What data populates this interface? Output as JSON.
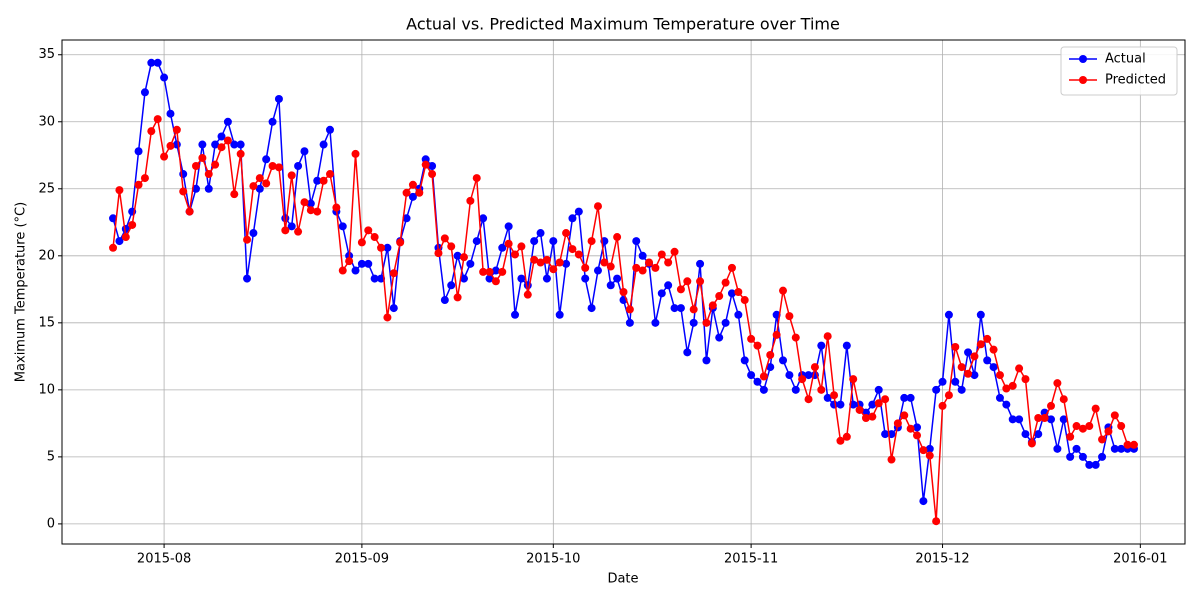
{
  "chart_data": {
    "type": "line",
    "title": "Actual vs. Predicted Maximum Temperature over Time",
    "xlabel": "Date",
    "ylabel": "Maximum Temperature (°C)",
    "x": [
      "2015-07-24",
      "2015-07-25",
      "2015-07-26",
      "2015-07-27",
      "2015-07-28",
      "2015-07-29",
      "2015-07-30",
      "2015-07-31",
      "2015-08-01",
      "2015-08-02",
      "2015-08-03",
      "2015-08-04",
      "2015-08-05",
      "2015-08-06",
      "2015-08-07",
      "2015-08-08",
      "2015-08-09",
      "2015-08-10",
      "2015-08-11",
      "2015-08-12",
      "2015-08-13",
      "2015-08-14",
      "2015-08-15",
      "2015-08-16",
      "2015-08-17",
      "2015-08-18",
      "2015-08-19",
      "2015-08-20",
      "2015-08-21",
      "2015-08-22",
      "2015-08-23",
      "2015-08-24",
      "2015-08-25",
      "2015-08-26",
      "2015-08-27",
      "2015-08-28",
      "2015-08-29",
      "2015-08-30",
      "2015-08-31",
      "2015-09-01",
      "2015-09-02",
      "2015-09-03",
      "2015-09-04",
      "2015-09-05",
      "2015-09-06",
      "2015-09-07",
      "2015-09-08",
      "2015-09-09",
      "2015-09-10",
      "2015-09-11",
      "2015-09-12",
      "2015-09-13",
      "2015-09-14",
      "2015-09-15",
      "2015-09-16",
      "2015-09-17",
      "2015-09-18",
      "2015-09-19",
      "2015-09-20",
      "2015-09-21",
      "2015-09-22",
      "2015-09-23",
      "2015-09-24",
      "2015-09-25",
      "2015-09-26",
      "2015-09-27",
      "2015-09-28",
      "2015-09-29",
      "2015-09-30",
      "2015-10-01",
      "2015-10-02",
      "2015-10-03",
      "2015-10-04",
      "2015-10-05",
      "2015-10-06",
      "2015-10-07",
      "2015-10-08",
      "2015-10-09",
      "2015-10-10",
      "2015-10-11",
      "2015-10-12",
      "2015-10-13",
      "2015-10-14",
      "2015-10-15",
      "2015-10-16",
      "2015-10-17",
      "2015-10-18",
      "2015-10-19",
      "2015-10-20",
      "2015-10-21",
      "2015-10-22",
      "2015-10-23",
      "2015-10-24",
      "2015-10-25",
      "2015-10-26",
      "2015-10-27",
      "2015-10-28",
      "2015-10-29",
      "2015-10-30",
      "2015-10-31",
      "2015-11-01",
      "2015-11-02",
      "2015-11-03",
      "2015-11-04",
      "2015-11-05",
      "2015-11-06",
      "2015-11-07",
      "2015-11-08",
      "2015-11-09",
      "2015-11-10",
      "2015-11-11",
      "2015-11-12",
      "2015-11-13",
      "2015-11-14",
      "2015-11-15",
      "2015-11-16",
      "2015-11-17",
      "2015-11-18",
      "2015-11-19",
      "2015-11-20",
      "2015-11-21",
      "2015-11-22",
      "2015-11-23",
      "2015-11-24",
      "2015-11-25",
      "2015-11-26",
      "2015-11-27",
      "2015-11-28",
      "2015-11-29",
      "2015-11-30",
      "2015-12-01",
      "2015-12-02",
      "2015-12-03",
      "2015-12-04",
      "2015-12-05",
      "2015-12-06",
      "2015-12-07",
      "2015-12-08",
      "2015-12-09",
      "2015-12-10",
      "2015-12-11",
      "2015-12-12",
      "2015-12-13",
      "2015-12-14",
      "2015-12-15",
      "2015-12-16",
      "2015-12-17",
      "2015-12-18",
      "2015-12-19",
      "2015-12-20",
      "2015-12-21",
      "2015-12-22",
      "2015-12-23",
      "2015-12-24",
      "2015-12-25",
      "2015-12-26",
      "2015-12-27",
      "2015-12-28",
      "2015-12-29",
      "2015-12-30",
      "2015-12-31"
    ],
    "series": [
      {
        "name": "Actual",
        "color": "#0000ff",
        "values": [
          22.8,
          21.1,
          22.0,
          23.3,
          27.8,
          32.2,
          34.4,
          34.4,
          33.3,
          30.6,
          28.3,
          26.1,
          23.3,
          25.0,
          28.3,
          25.0,
          28.3,
          28.9,
          30.0,
          28.3,
          28.3,
          18.3,
          21.7,
          25.0,
          27.2,
          30.0,
          31.7,
          22.8,
          22.2,
          26.7,
          27.8,
          23.9,
          25.6,
          28.3,
          29.4,
          23.3,
          22.2,
          20.0,
          18.9,
          19.4,
          19.4,
          18.3,
          18.3,
          20.6,
          16.1,
          21.1,
          22.8,
          24.4,
          25.0,
          27.2,
          26.7,
          20.6,
          16.7,
          17.8,
          20.0,
          18.3,
          19.4,
          21.1,
          22.8,
          18.3,
          18.9,
          20.6,
          22.2,
          15.6,
          18.3,
          17.8,
          21.1,
          21.7,
          18.3,
          21.1,
          15.6,
          19.4,
          22.8,
          23.3,
          18.3,
          16.1,
          18.9,
          21.1,
          17.8,
          18.3,
          16.7,
          15.0,
          21.1,
          20.0,
          19.4,
          15.0,
          17.2,
          17.8,
          16.1,
          16.1,
          12.8,
          15.0,
          19.4,
          12.2,
          16.1,
          13.9,
          15.0,
          17.2,
          15.6,
          12.2,
          11.1,
          10.6,
          10.0,
          11.7,
          15.6,
          12.2,
          11.1,
          10.0,
          11.1,
          11.1,
          11.1,
          13.3,
          9.4,
          8.9,
          8.9,
          13.3,
          8.9,
          8.9,
          8.3,
          8.9,
          10.0,
          6.7,
          6.7,
          7.2,
          9.4,
          9.4,
          7.2,
          1.7,
          5.6,
          10.0,
          10.6,
          15.6,
          10.6,
          10.0,
          12.8,
          11.1,
          15.6,
          12.2,
          11.7,
          9.4,
          8.9,
          7.8,
          7.8,
          6.7,
          6.1,
          6.7,
          8.3,
          7.8,
          5.6,
          7.8,
          5.0,
          5.6,
          5.0,
          4.4,
          4.4,
          5.0,
          7.2,
          5.6,
          5.6,
          5.6,
          5.6
        ]
      },
      {
        "name": "Predicted",
        "color": "#ff0000",
        "values": [
          20.6,
          24.9,
          21.4,
          22.3,
          25.3,
          25.8,
          29.3,
          30.2,
          27.4,
          28.2,
          29.4,
          24.8,
          23.3,
          26.7,
          27.3,
          26.1,
          26.8,
          28.1,
          28.6,
          24.6,
          27.6,
          21.2,
          25.2,
          25.8,
          25.4,
          26.7,
          26.6,
          21.9,
          26.0,
          21.8,
          24.0,
          23.4,
          23.3,
          25.6,
          26.1,
          23.6,
          18.9,
          19.6,
          27.6,
          21.0,
          21.9,
          21.4,
          20.6,
          15.4,
          18.7,
          21.0,
          24.7,
          25.3,
          24.7,
          26.8,
          26.1,
          20.2,
          21.3,
          20.7,
          16.9,
          19.9,
          24.1,
          25.8,
          18.8,
          18.8,
          18.1,
          18.8,
          20.9,
          20.1,
          20.7,
          17.1,
          19.7,
          19.5,
          19.7,
          19.0,
          19.5,
          21.7,
          20.5,
          20.1,
          19.1,
          21.1,
          23.7,
          19.5,
          19.2,
          21.4,
          17.3,
          16.0,
          19.1,
          18.9,
          19.5,
          19.1,
          20.1,
          19.5,
          20.3,
          17.5,
          18.1,
          16.0,
          18.1,
          15.0,
          16.3,
          17.0,
          18.0,
          19.1,
          17.3,
          16.7,
          13.8,
          13.3,
          11.0,
          12.6,
          14.1,
          17.4,
          15.5,
          13.9,
          10.8,
          9.3,
          11.7,
          10.0,
          14.0,
          9.6,
          6.2,
          6.5,
          10.8,
          8.5,
          7.9,
          8.0,
          9.0,
          9.3,
          4.8,
          7.5,
          8.1,
          7.1,
          6.6,
          5.5,
          5.1,
          0.2,
          8.8,
          9.6,
          13.2,
          11.7,
          11.2,
          12.5,
          13.4,
          13.8,
          13.0,
          11.1,
          10.1,
          10.3,
          11.6,
          10.8,
          6.0,
          7.9,
          7.9,
          8.8,
          10.5,
          9.3,
          6.5,
          7.3,
          7.1,
          7.3,
          8.6,
          6.3,
          6.9,
          8.1,
          7.3,
          5.9,
          5.9
        ]
      }
    ],
    "xlim": [
      "2015-07-16",
      "2016-01-08"
    ],
    "xticks": [
      {
        "value": "2015-08-01",
        "label": "2015-08"
      },
      {
        "value": "2015-09-01",
        "label": "2015-09"
      },
      {
        "value": "2015-10-01",
        "label": "2015-10"
      },
      {
        "value": "2015-11-01",
        "label": "2015-11"
      },
      {
        "value": "2015-12-01",
        "label": "2015-12"
      },
      {
        "value": "2016-01-01",
        "label": "2016-01"
      }
    ],
    "ylim": [
      -1.5,
      36.1
    ],
    "yticks": [
      0,
      5,
      10,
      15,
      20,
      25,
      30,
      35
    ],
    "grid": true,
    "legend": "upper right"
  }
}
